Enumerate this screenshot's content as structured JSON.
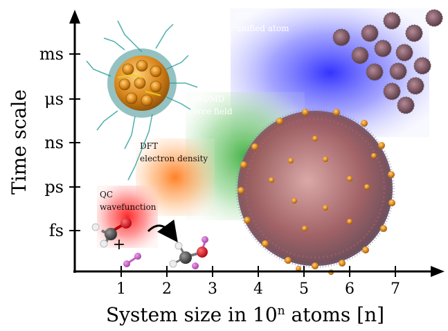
{
  "axes": {
    "y_label": "Time scale",
    "x_label_pre": "System size in 10",
    "x_label_sup": "n",
    "x_label_post": " atoms [n]",
    "y_ticks": [
      "ms",
      "μs",
      "ns",
      "ps",
      "fs"
    ],
    "x_ticks": [
      "1",
      "2",
      "3",
      "4",
      "5",
      "6",
      "7"
    ]
  },
  "regions": {
    "qc": {
      "line1": "QC",
      "line2": "wavefunction",
      "color": "#ff2020"
    },
    "dft": {
      "line1": "DFT",
      "line2": "electron density",
      "color": "#ff7a1a"
    },
    "mm": {
      "line1": "MM/MD",
      "line2": "force field",
      "color": "#1fa01f"
    },
    "cg": {
      "line1": "CG",
      "line2": "unified atom",
      "color": "#1a1aff"
    }
  },
  "reaction": {
    "plus": "+"
  },
  "images": {
    "nanoparticle": "gold-nanoparticle-image",
    "large_system": "nanoparticle-assembly-image",
    "cg_particles": "coarse-grained-particles-image"
  }
}
